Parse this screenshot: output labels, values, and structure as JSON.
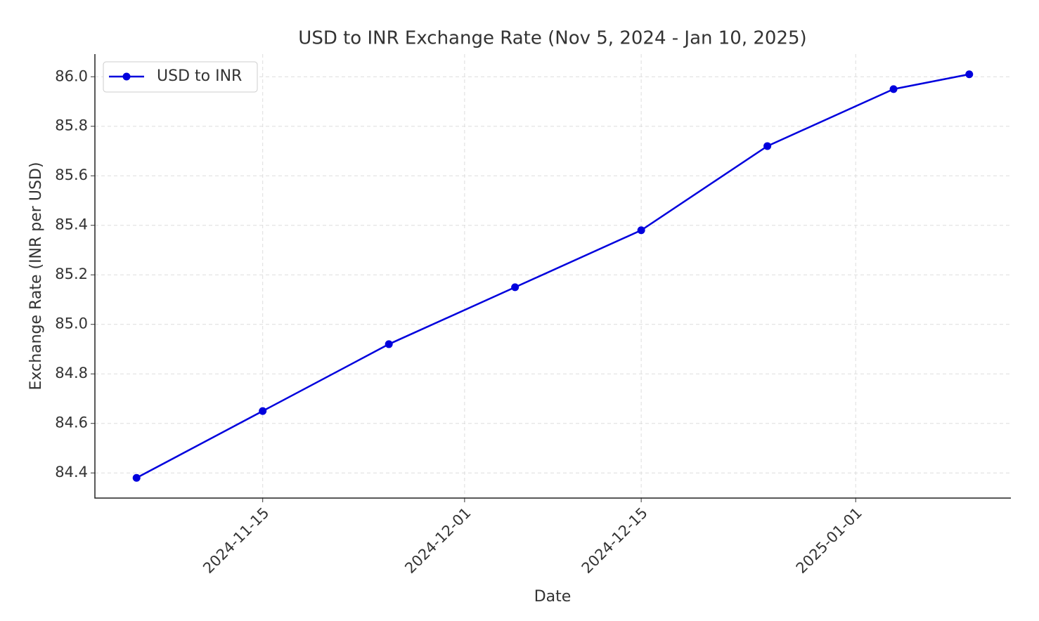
{
  "chart_data": {
    "type": "line",
    "title": "USD to INR Exchange Rate (Nov 5, 2024 - Jan 10, 2025)",
    "x_label": "Date",
    "y_label": "Exchange Rate (INR per USD)",
    "x": [
      "2024-11-05",
      "2024-11-15",
      "2024-11-25",
      "2024-12-05",
      "2024-12-15",
      "2024-12-25",
      "2025-01-04",
      "2025-01-10"
    ],
    "series": [
      {
        "name": "USD to INR",
        "color": "#0000dd",
        "values": [
          84.38,
          84.65,
          84.92,
          85.15,
          85.38,
          85.72,
          85.95,
          86.01
        ]
      }
    ],
    "xlim": [
      "2024-11-01T16:48:00Z",
      "2025-01-13T07:12:00Z"
    ],
    "xticks": [
      "2024-11-15",
      "2024-12-01",
      "2024-12-15",
      "2025-01-01"
    ],
    "ylim": [
      84.2985,
      86.0915
    ],
    "yticks": [
      84.4,
      84.6,
      84.8,
      {
        "value": 85,
        "label": "85.0"
      },
      85.2,
      85.4,
      85.6,
      85.8,
      {
        "value": 86,
        "label": "86.0"
      }
    ],
    "grid": true,
    "legend": "upper left"
  }
}
